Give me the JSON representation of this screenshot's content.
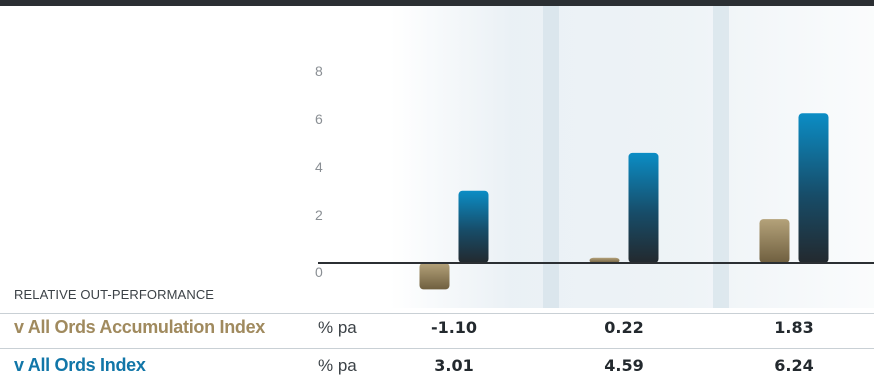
{
  "chart_data": {
    "type": "bar",
    "categories": [
      "",
      "",
      ""
    ],
    "series": [
      {
        "name": "v All Ords Accumulation Index",
        "values": [
          -1.1,
          0.22,
          1.83
        ],
        "color": "#9f8c63"
      },
      {
        "name": "v All Ords Index",
        "values": [
          3.01,
          4.59,
          6.24
        ],
        "color": "#0a88bd"
      }
    ],
    "yticks": [
      "0",
      "2",
      "4",
      "6",
      "8"
    ],
    "ylim": [
      -1.2,
      8.5
    ],
    "grid": false,
    "title": "",
    "xlabel": "",
    "ylabel": ""
  },
  "table": {
    "caption": "RELATIVE OUT-PERFORMANCE",
    "rows": [
      {
        "label": "v All Ords Accumulation Index",
        "unit": "% pa",
        "values": [
          "-1.10",
          "0.22",
          "1.83"
        ]
      },
      {
        "label": "v All Ords Index",
        "unit": "% pa",
        "values": [
          "3.01",
          "4.59",
          "6.24"
        ]
      }
    ]
  },
  "colors": {
    "accumulation": "#9f8c63",
    "index": "#0a88bd",
    "dark": "#23292e"
  }
}
